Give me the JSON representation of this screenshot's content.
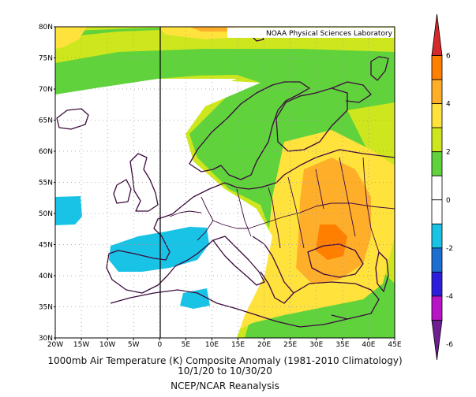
{
  "credit": "NOAA Physical Sciences Laboratory",
  "caption": {
    "line1": "1000mb Air Temperature (K) Composite Anomaly (1981-2010 Climatology)",
    "line2": "10/1/20  to 10/30/20",
    "line3": "NCEP/NCAR Reanalysis"
  },
  "map": {
    "lon_range": [
      -20,
      45
    ],
    "lat_range": [
      30,
      80
    ],
    "lon_ticks": [
      "20W",
      "15W",
      "10W",
      "5W",
      "0",
      "5E",
      "10E",
      "15E",
      "20E",
      "25E",
      "30E",
      "35E",
      "40E",
      "45E"
    ],
    "lat_ticks": [
      "30N",
      "35N",
      "40N",
      "45N",
      "50N",
      "55N",
      "60N",
      "65N",
      "70N",
      "75N",
      "80N"
    ],
    "background_color": "#ffffff",
    "coastline_color": "#3c0a3c",
    "grid": "dotted"
  },
  "colorbar": {
    "tick_labels": [
      "6",
      "4",
      "2",
      "0",
      "-2",
      "-4",
      "-6"
    ],
    "colors": [
      "#d62a2a",
      "#ff7f00",
      "#ffae2a",
      "#ffe23c",
      "#cde61e",
      "#5fd23c",
      "#ffffff",
      "#ffffff",
      "#19c3e6",
      "#1e6ed2",
      "#2d1edc",
      "#b914c8",
      "#6e1e91"
    ]
  }
}
